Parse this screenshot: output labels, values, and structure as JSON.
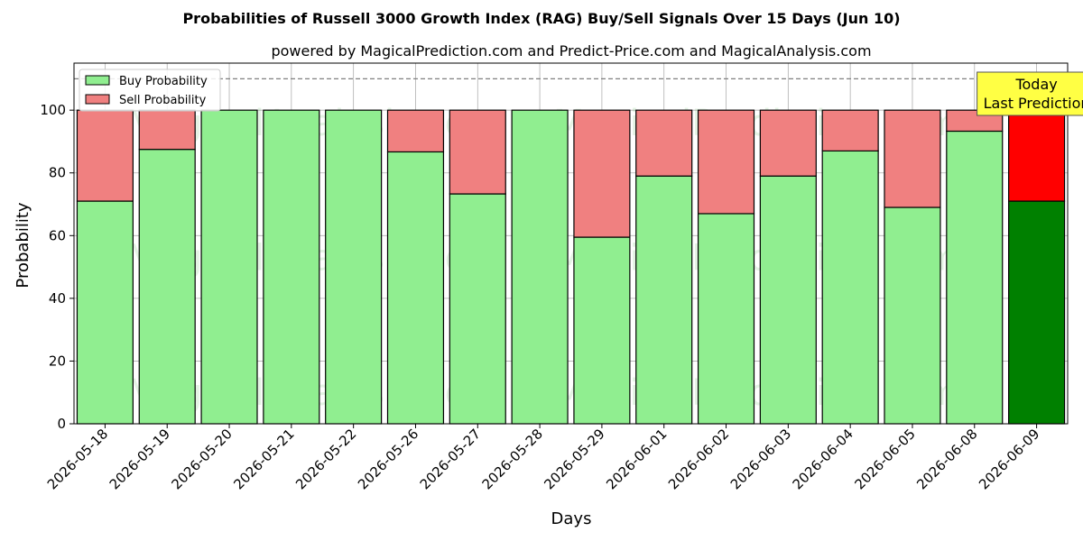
{
  "chart_data": {
    "type": "bar",
    "stacked": true,
    "title": "Probabilities of Russell 3000 Growth Index (RAG) Buy/Sell Signals Over 15 Days (Jun 10)",
    "subtitle": "powered by MagicalPrediction.com and Predict-Price.com and MagicalAnalysis.com",
    "xlabel": "Days",
    "ylabel": "Probability",
    "ylim": [
      0,
      115
    ],
    "yticks": [
      0,
      20,
      40,
      60,
      80,
      100
    ],
    "grid": true,
    "legend_position": "top-left",
    "categories": [
      "2026-05-18",
      "2026-05-19",
      "2026-05-20",
      "2026-05-21",
      "2026-05-22",
      "2026-05-26",
      "2026-05-27",
      "2026-05-28",
      "2026-05-29",
      "2026-06-01",
      "2026-06-02",
      "2026-06-03",
      "2026-06-04",
      "2026-06-05",
      "2026-06-08",
      "2026-06-09"
    ],
    "series": [
      {
        "name": "Buy Probability",
        "color": "#90ee90",
        "highlight_color": "#008000",
        "values": [
          71,
          87.5,
          100,
          100,
          100,
          86.7,
          73.3,
          100,
          59.5,
          79,
          67,
          79,
          87,
          69,
          93.3,
          71
        ]
      },
      {
        "name": "Sell Probability",
        "color": "#f08080",
        "highlight_color": "#ff0000",
        "values": [
          29,
          12.5,
          0,
          0,
          0,
          13.3,
          26.7,
          0,
          40.5,
          21,
          33,
          21,
          13,
          31,
          6.7,
          29
        ]
      }
    ],
    "highlight_index": 15,
    "reference_line": {
      "y": 110,
      "style": "dashed",
      "color": "#808080"
    },
    "annotation": {
      "lines": [
        "Today",
        "Last Prediction"
      ],
      "bg_color": "#ffff44",
      "at_index": 15
    },
    "watermarks": [
      "MagicalAnalysis.com",
      "MagicalPrediction.com"
    ]
  }
}
